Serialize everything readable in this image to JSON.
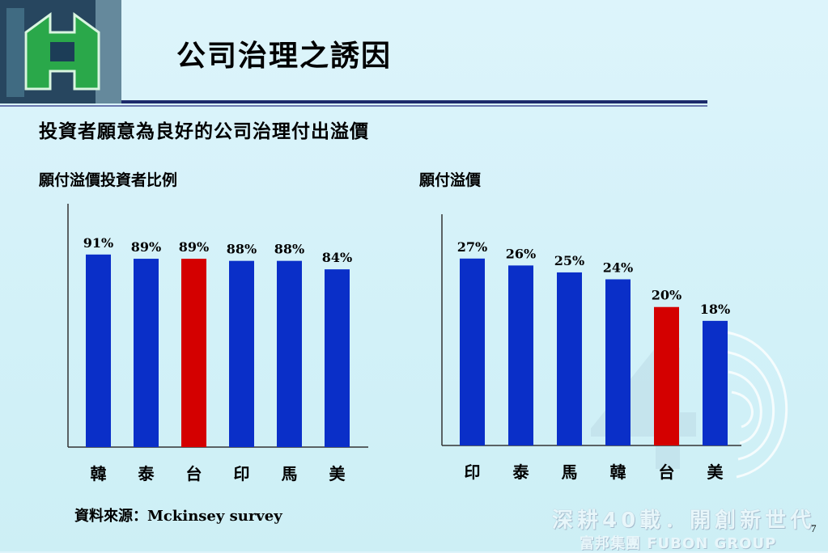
{
  "title": "公司治理之誘因",
  "subtitle": "投資者願意為良好的公司治理付出溢價",
  "source": "資料來源：Mckinsey survey",
  "slogan": "深耕40載．開創新世代",
  "group_name": "富邦集團 FUBON GROUP",
  "page_number": "7",
  "colors": {
    "bar": "#0a2fc8",
    "highlight": "#d40000",
    "axis": "#333333"
  },
  "chart_data": [
    {
      "type": "bar",
      "title": "願付溢價投資者比例",
      "categories": [
        "韓",
        "泰",
        "台",
        "印",
        "馬",
        "美"
      ],
      "values": [
        91,
        89,
        89,
        88,
        88,
        84
      ],
      "value_labels": [
        "91%",
        "89%",
        "89%",
        "88%",
        "88%",
        "84%"
      ],
      "highlight_index": 2,
      "ylim": [
        0,
        115
      ],
      "grid": false,
      "xlabel": "",
      "ylabel": ""
    },
    {
      "type": "bar",
      "title": "願付溢價",
      "categories": [
        "印",
        "泰",
        "馬",
        "韓",
        "台",
        "美"
      ],
      "values": [
        27,
        26,
        25,
        24,
        20,
        18
      ],
      "value_labels": [
        "27%",
        "26%",
        "25%",
        "24%",
        "20%",
        "18%"
      ],
      "highlight_index": 4,
      "ylim": [
        0,
        33.4
      ],
      "grid": false,
      "xlabel": "",
      "ylabel": ""
    }
  ]
}
